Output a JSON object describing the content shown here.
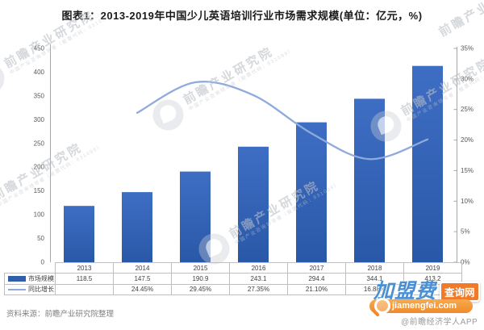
{
  "header": {
    "title": "图表1：2013-2019年中国少儿英语培训行业市场需求规模(单位：亿元，%)"
  },
  "chart_data": {
    "type": "bar",
    "combo": "bar+line",
    "title": "2013-2019年中国少儿英语培训行业市场需求规模",
    "categories": [
      "2013",
      "2014",
      "2015",
      "2016",
      "2017",
      "2018",
      "2019"
    ],
    "series": [
      {
        "name": "市场规模",
        "type": "bar",
        "axis": "left",
        "unit": "亿元",
        "values": [
          118.5,
          147.5,
          190.9,
          243.1,
          294.4,
          344.1,
          413.2
        ]
      },
      {
        "name": "同比增长",
        "type": "line",
        "axis": "right",
        "unit": "%",
        "values": [
          null,
          24.45,
          29.45,
          27.35,
          21.1,
          16.88,
          20.1
        ]
      }
    ],
    "left_axis": {
      "min": 0,
      "max": 450,
      "step": 50
    },
    "right_axis": {
      "min": 0,
      "max": 35,
      "step": 5,
      "suffix": "%"
    },
    "grid": false,
    "legend_position": "table-left"
  },
  "table": {
    "years": [
      "2013",
      "2014",
      "2015",
      "2016",
      "2017",
      "2018",
      "2019"
    ],
    "rows": [
      {
        "legend": "市场规模",
        "swatch": "bar",
        "values": [
          "118.5",
          "147.5",
          "190.9",
          "243.1",
          "294.4",
          "344.1",
          "413.2"
        ]
      },
      {
        "legend": "同比增长",
        "swatch": "line",
        "values": [
          "",
          "24.45%",
          "29.45%",
          "27.35%",
          "21.10%",
          "16.88%",
          ""
        ]
      }
    ]
  },
  "footer": {
    "source": "资料来源：前瞻产业研究院整理"
  },
  "watermark": {
    "name": "前瞻产业研究院",
    "sub": "中国产业咨询领导者（股票代码：831099）"
  },
  "brand": {
    "big": "加盟费",
    "tag": "查询网",
    "domain": "jiamengfei.com",
    "handle": "@前瞻经济学人APP"
  },
  "colors": {
    "bar_top": "#3e6ec4",
    "bar_bottom": "#2a58a8",
    "line": "#8faadc",
    "axis": "#a6a6a6",
    "table_border": "#bfbfbf",
    "brand_orange": "#f07a28",
    "brand_blue": "#4a8fd4"
  }
}
